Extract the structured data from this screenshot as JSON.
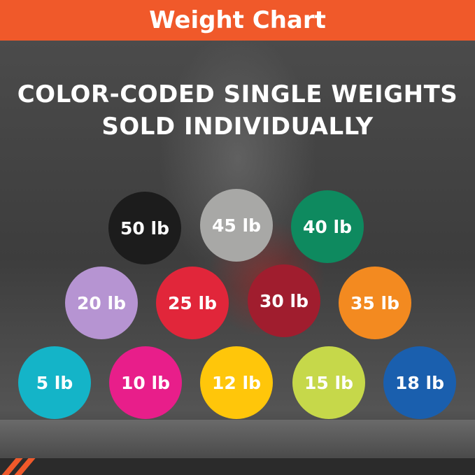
{
  "header": {
    "title": "Weight Chart"
  },
  "headline": {
    "line1": "COLOR-CODED SINGLE WEIGHTS",
    "line2": "SOLD INDIVIDUALLY"
  },
  "accent_color": "#f0592a",
  "weights": [
    {
      "label": "50 lb",
      "color": "#1c1c1c"
    },
    {
      "label": "45 lb",
      "color": "#a8a8a6"
    },
    {
      "label": "40 lb",
      "color": "#0e8a5f"
    },
    {
      "label": "20 lb",
      "color": "#b694d2"
    },
    {
      "label": "25 lb",
      "color": "#e1263a"
    },
    {
      "label": "30 lb",
      "color": "#a01d2e"
    },
    {
      "label": "35 lb",
      "color": "#f38a20"
    },
    {
      "label": "5 lb",
      "color": "#14b4c8"
    },
    {
      "label": "10 lb",
      "color": "#e81e8a"
    },
    {
      "label": "12 lb",
      "color": "#ffc60a"
    },
    {
      "label": "15 lb",
      "color": "#c6d84a"
    },
    {
      "label": "18 lb",
      "color": "#1a5fae"
    }
  ]
}
